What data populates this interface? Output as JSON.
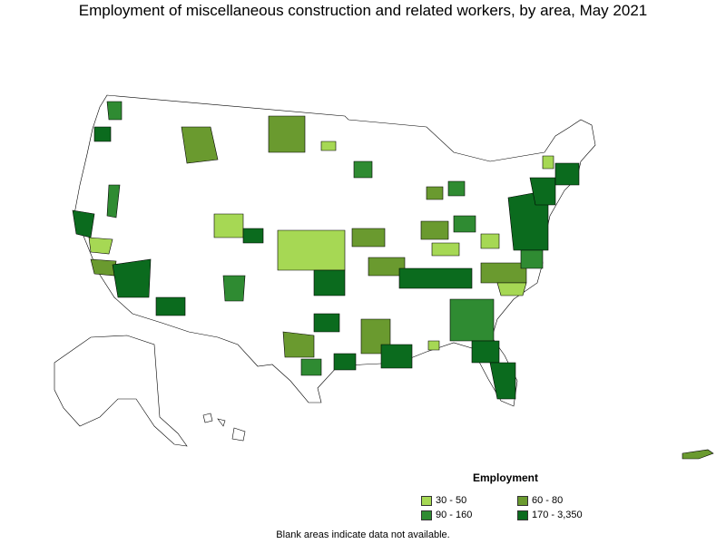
{
  "title": "Employment of miscellaneous construction and related workers, by area, May 2021",
  "legend": {
    "title": "Employment",
    "items": [
      {
        "label": "30 - 50",
        "color": "#a6d854"
      },
      {
        "label": "60 - 80",
        "color": "#6a9a2f"
      },
      {
        "label": "90 - 160",
        "color": "#2f8b32"
      },
      {
        "label": "170 - 3,350",
        "color": "#0b6b1e"
      }
    ]
  },
  "note": "Blank areas indicate data not available."
}
